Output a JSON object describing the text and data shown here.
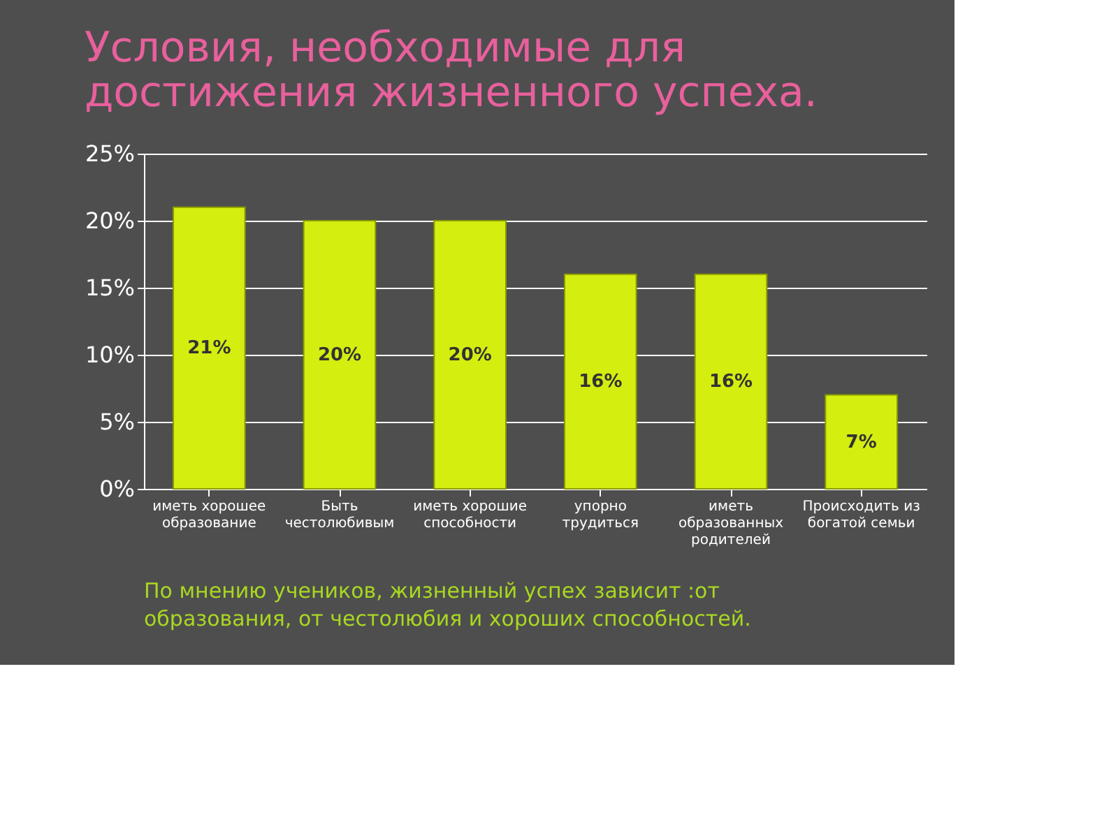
{
  "chart_data": {
    "type": "bar",
    "title": "Условия, необходимые для\nдостижения жизненного успеха.",
    "categories": [
      "иметь хорошее\nобразование",
      "Быть\nчестолюбивым",
      "иметь хорошие\nспособности",
      "упорно\nтрудиться",
      "иметь\nобразованных\nродителей",
      "Происходить из\nбогатой семьи"
    ],
    "values": [
      21,
      20,
      20,
      16,
      16,
      7
    ],
    "value_labels": [
      "21%",
      "20%",
      "20%",
      "16%",
      "16%",
      "7%"
    ],
    "color": "#d4ee10",
    "ylim": [
      0,
      25
    ],
    "yticks": [
      {
        "value": 0,
        "label": "0%"
      },
      {
        "value": 5,
        "label": "5%"
      },
      {
        "value": 10,
        "label": "10%"
      },
      {
        "value": 15,
        "label": "15%"
      },
      {
        "value": 20,
        "label": "20%"
      },
      {
        "value": 25,
        "label": "25%"
      }
    ],
    "grid": "y",
    "annotations": [
      "По мнению учеников, жизненный успех зависит :от\nобразования, от честолюбия и хороших способностей."
    ]
  }
}
